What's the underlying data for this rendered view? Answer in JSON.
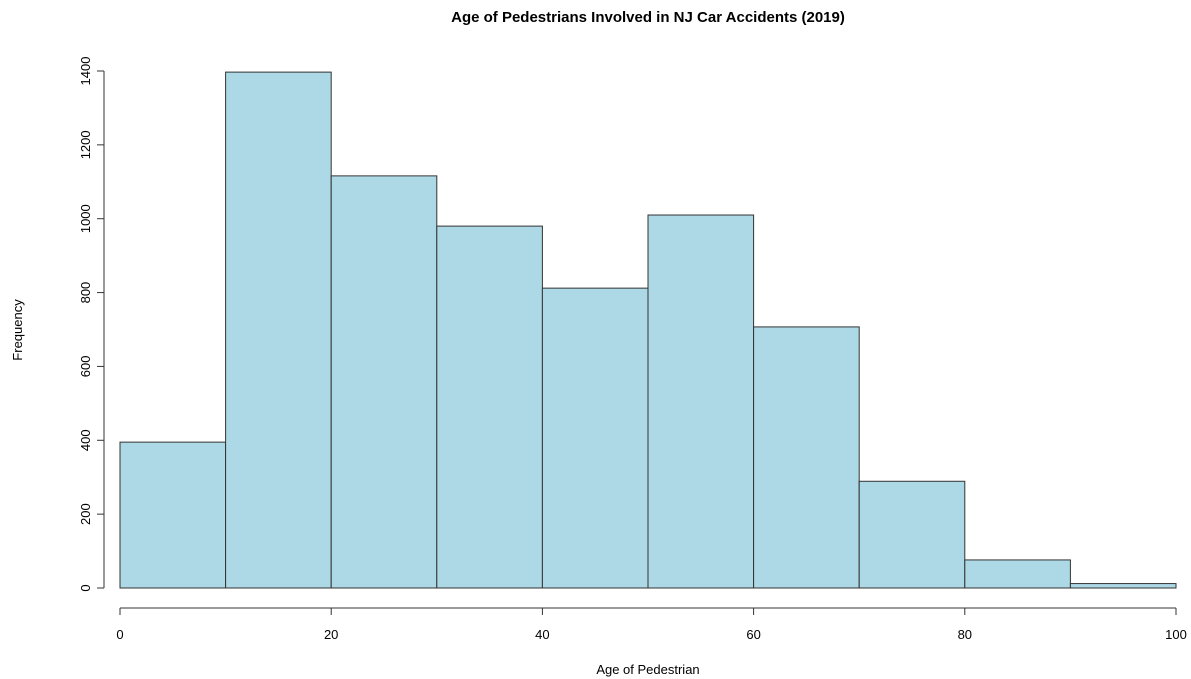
{
  "chart_data": {
    "type": "bar",
    "title": "Age of Pedestrians Involved in NJ Car Accidents (2019)",
    "xlabel": "Age of Pedestrian",
    "ylabel": "Frequency",
    "bins": [
      {
        "from": 0,
        "to": 10,
        "value": 395
      },
      {
        "from": 10,
        "to": 20,
        "value": 1397
      },
      {
        "from": 20,
        "to": 30,
        "value": 1116
      },
      {
        "from": 30,
        "to": 40,
        "value": 980
      },
      {
        "from": 40,
        "to": 50,
        "value": 812
      },
      {
        "from": 50,
        "to": 60,
        "value": 1010
      },
      {
        "from": 60,
        "to": 70,
        "value": 707
      },
      {
        "from": 70,
        "to": 80,
        "value": 289
      },
      {
        "from": 80,
        "to": 90,
        "value": 76
      },
      {
        "from": 90,
        "to": 100,
        "value": 12
      }
    ],
    "xlim": [
      0,
      100
    ],
    "ylim": [
      0,
      1400
    ],
    "x_ticks": [
      0,
      20,
      40,
      60,
      80,
      100
    ],
    "y_ticks": [
      0,
      200,
      400,
      600,
      800,
      1000,
      1200,
      1400
    ],
    "bar_color": "#add8e6",
    "edge_color": "#333333",
    "grid": false,
    "legend": false
  }
}
